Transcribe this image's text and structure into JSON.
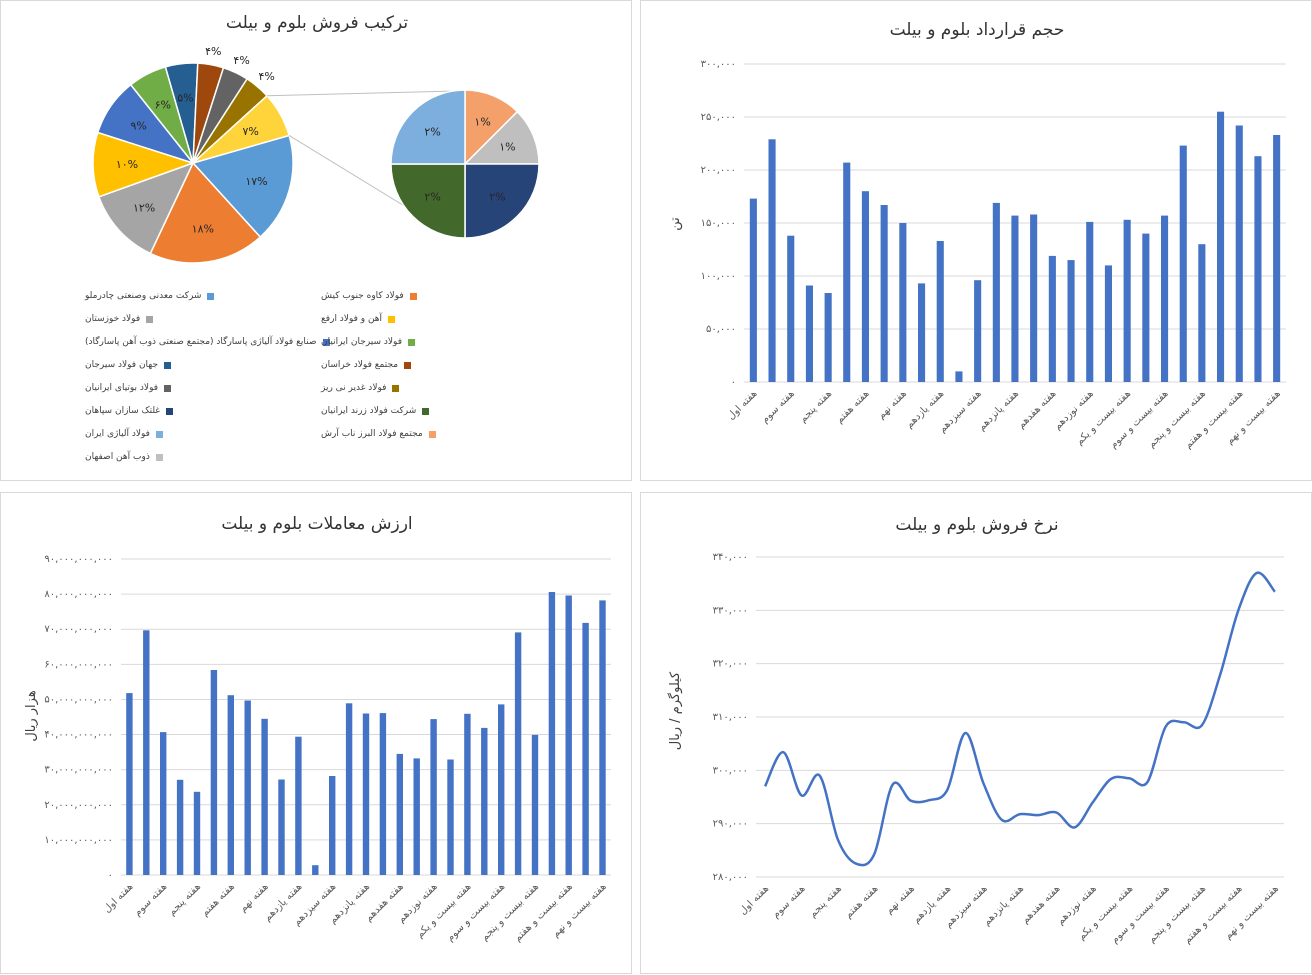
{
  "pie_panel": {
    "title": "ترکیب فروش بلوم و بیلت",
    "main_slices": [
      {
        "label": "۱۷%",
        "value": 17,
        "color": "#5b9bd5"
      },
      {
        "label": "۱۸%",
        "value": 18,
        "color": "#ed7d31"
      },
      {
        "label": "۱۲%",
        "value": 12,
        "color": "#a5a5a5"
      },
      {
        "label": "۱۰%",
        "value": 10,
        "color": "#ffc000"
      },
      {
        "label": "۹%",
        "value": 9,
        "color": "#4472c4"
      },
      {
        "label": "۶%",
        "value": 6,
        "color": "#70ad47"
      },
      {
        "label": "۵%",
        "value": 5,
        "color": "#255e91"
      },
      {
        "label": "۴%",
        "value": 4,
        "color": "#9e480e"
      },
      {
        "label": "۴%",
        "value": 4,
        "color": "#636363"
      },
      {
        "label": "۴%",
        "value": 4,
        "color": "#997300"
      },
      {
        "label": "۷%",
        "value": 7,
        "color": "#ffd43b"
      }
    ],
    "secondary_slices": [
      {
        "label": "۱%",
        "value": 1,
        "color": "#f4a06a"
      },
      {
        "label": "۱%",
        "value": 1,
        "color": "#bfbfbf"
      },
      {
        "label": "۲%",
        "value": 2,
        "color": "#264478"
      },
      {
        "label": "۲%",
        "value": 2,
        "color": "#43682b"
      },
      {
        "label": "۲%",
        "value": 2,
        "color": "#7cafdd"
      }
    ],
    "legend": [
      {
        "label": "شرکت معدنی وصنعتی چادرملو",
        "color": "#5b9bd5"
      },
      {
        "label": "فولاد کاوه جنوب کیش",
        "color": "#ed7d31"
      },
      {
        "label": "فولاد خوزستان",
        "color": "#a5a5a5"
      },
      {
        "label": "آهن و فولاد ارفع",
        "color": "#ffc000"
      },
      {
        "label": "صنایع فولاد آلیاژی پاسارگاد (مجتمع صنعتی ذوب آهن پاسارگاد)",
        "color": "#4472c4"
      },
      {
        "label": "فولاد سیرجان ایرانیان",
        "color": "#70ad47"
      },
      {
        "label": "جهان فولاد سیرجان",
        "color": "#255e91"
      },
      {
        "label": "مجتمع فولاد خراسان",
        "color": "#9e480e"
      },
      {
        "label": "فولاد بوتیای ایرانیان",
        "color": "#636363"
      },
      {
        "label": "فولاد غدیر نی ریز",
        "color": "#997300"
      },
      {
        "label": "غلتک سازان سپاهان",
        "color": "#264478"
      },
      {
        "label": "شرکت فولاد زرند ایرانیان",
        "color": "#43682b"
      },
      {
        "label": "فولاد آلیاژی ایران",
        "color": "#7cafdd"
      },
      {
        "label": "مجتمع فولاد البرز ناب آرش",
        "color": "#f4a06a"
      },
      {
        "label": "ذوب آهن اصفهان",
        "color": "#bfbfbf"
      }
    ]
  },
  "chart_data": [
    {
      "type": "pie",
      "title": "ترکیب فروش بلوم و بیلت",
      "variant": "pie-of-pie",
      "categories": [
        "شرکت معدنی وصنعتی چادرملو",
        "فولاد کاوه جنوب کیش",
        "فولاد خوزستان",
        "آهن و فولاد ارفع",
        "صنایع فولاد آلیاژی پاسارگاد (مجتمع صنعتی ذوب آهن پاسارگاد)",
        "فولاد سیرجان ایرانیان",
        "جهان فولاد سیرجان",
        "مجتمع فولاد خراسان",
        "فولاد بوتیای ایرانیان",
        "فولاد غدیر نی ریز",
        "غلتک سازان سپاهان",
        "شرکت فولاد زرند ایرانیان",
        "فولاد آلیاژی ایران",
        "مجتمع فولاد البرز ناب آرش",
        "ذوب آهن اصفهان"
      ],
      "values": [
        17,
        18,
        12,
        10,
        9,
        6,
        5,
        4,
        4,
        4,
        2,
        2,
        2,
        1,
        1
      ],
      "legend_position": "bottom"
    },
    {
      "type": "bar",
      "title": "حجم قرارداد بلوم و بیلت",
      "ylabel": "تن",
      "ylim": [
        0,
        300000
      ],
      "yticks": [
        "۰",
        "۵۰,۰۰۰",
        "۱۰۰,۰۰۰",
        "۱۵۰,۰۰۰",
        "۲۰۰,۰۰۰",
        "۲۵۰,۰۰۰",
        "۳۰۰,۰۰۰"
      ],
      "grid": true,
      "categories_shown": [
        "هفته اول",
        "هفته سوم",
        "هفته پنجم",
        "هفته هفتم",
        "هفته نهم",
        "هفته یازدهم",
        "هفته سیزدهم",
        "هفته پانزدهم",
        "هفته هفدهم",
        "هفته نوزدهم",
        "هفته بیست و یکم",
        "هفته بیست و سوم",
        "هفته بیست و پنجم",
        "هفته بیست و هفتم",
        "هفته بیست و نهم"
      ],
      "values": [
        173000,
        229000,
        138000,
        91000,
        84000,
        207000,
        180000,
        167000,
        150000,
        93000,
        133000,
        10000,
        96000,
        169000,
        157000,
        158000,
        119000,
        115000,
        151000,
        110000,
        153000,
        140000,
        157000,
        223000,
        130000,
        255000,
        242000,
        213000,
        233000
      ]
    },
    {
      "type": "bar",
      "title": "ارزش معاملات بلوم و بیلت",
      "ylabel": "هزار ریال",
      "ylim": [
        0,
        90000000000
      ],
      "yticks": [
        "۰",
        "۱۰,۰۰۰,۰۰۰,۰۰۰",
        "۲۰,۰۰۰,۰۰۰,۰۰۰",
        "۳۰,۰۰۰,۰۰۰,۰۰۰",
        "۴۰,۰۰۰,۰۰۰,۰۰۰",
        "۵۰,۰۰۰,۰۰۰,۰۰۰",
        "۶۰,۰۰۰,۰۰۰,۰۰۰",
        "۷۰,۰۰۰,۰۰۰,۰۰۰",
        "۸۰,۰۰۰,۰۰۰,۰۰۰",
        "۹۰,۰۰۰,۰۰۰,۰۰۰"
      ],
      "grid": true,
      "categories_shown": [
        "هفته اول",
        "هفته سوم",
        "هفته پنجم",
        "هفته هفتم",
        "هفته نهم",
        "هفته یازدهم",
        "هفته سیزدهم",
        "هفته پانزدهم",
        "هفته هفدهم",
        "هفته نوزدهم",
        "هفته بیست و یکم",
        "هفته بیست و سوم",
        "هفته بیست و پنجم",
        "هفته بیست و هفتم",
        "هفته بیست و نهم"
      ],
      "values": [
        51800000000,
        69700000000,
        40700000000,
        27100000000,
        23700000000,
        58400000000,
        51200000000,
        49700000000,
        44500000000,
        27200000000,
        39400000000,
        2800000000,
        28200000000,
        48900000000,
        46000000000,
        46100000000,
        34500000000,
        33200000000,
        44400000000,
        32900000000,
        45900000000,
        41900000000,
        48600000000,
        69100000000,
        39900000000,
        80600000000,
        79600000000,
        71800000000,
        78200000000
      ]
    },
    {
      "type": "line",
      "title": "نرخ فروش بلوم و بیلت",
      "ylabel": "کیلوگرم / ریال",
      "ylim": [
        280000,
        340000
      ],
      "yticks": [
        "۲۸۰,۰۰۰",
        "۲۹۰,۰۰۰",
        "۳۰۰,۰۰۰",
        "۳۱۰,۰۰۰",
        "۳۲۰,۰۰۰",
        "۳۳۰,۰۰۰",
        "۳۴۰,۰۰۰"
      ],
      "grid": true,
      "smooth": true,
      "categories_shown": [
        "هفته اول",
        "هفته سوم",
        "هفته پنجم",
        "هفته هفتم",
        "هفته نهم",
        "هفته یازدهم",
        "هفته سیزدهم",
        "هفته پانزدهم",
        "هفته هفدهم",
        "هفته نوزدهم",
        "هفته بیست و یکم",
        "هفته بیست و سوم",
        "هفته بیست و پنجم",
        "هفته بیست و هفتم",
        "هفته بیست و نهم"
      ],
      "values": [
        297000,
        303400,
        295300,
        299000,
        287000,
        282500,
        284300,
        297300,
        294300,
        294400,
        296300,
        307000,
        297500,
        290700,
        291800,
        291600,
        292100,
        289300,
        294000,
        298400,
        298500,
        297800,
        308200,
        309000,
        308500,
        318000,
        330100,
        337000,
        333500
      ]
    }
  ]
}
